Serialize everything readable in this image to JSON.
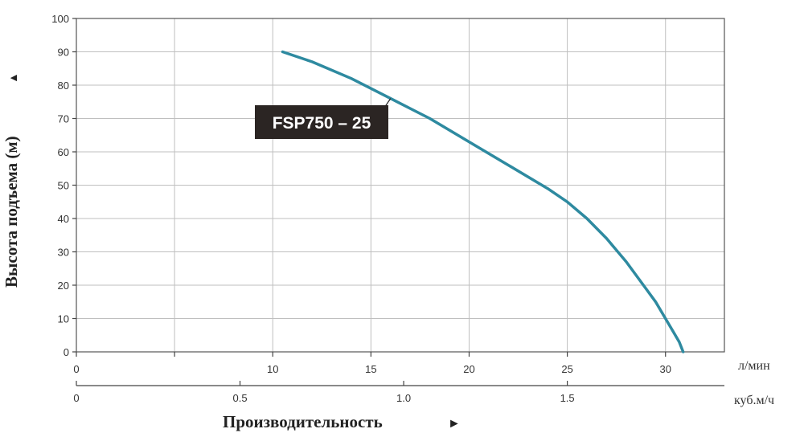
{
  "chart_data": {
    "type": "line",
    "ylabel": "Высота подъема (м)",
    "ylabel_arrow": "▲",
    "xlabel": "Производительность",
    "xlabel_arrow": "►",
    "ylim": [
      0,
      100
    ],
    "y_ticks": [
      "0",
      "10",
      "20",
      "30",
      "40",
      "50",
      "60",
      "70",
      "80",
      "90",
      "100"
    ],
    "x_axis_primary": {
      "unit": "л/мин",
      "ticks": [
        "0",
        "10",
        "15",
        "20",
        "25",
        "30"
      ],
      "range": [
        0,
        33
      ]
    },
    "x_axis_secondary": {
      "unit": "куб.м/ч",
      "ticks": [
        "0",
        "0.5",
        "1.0",
        "1.5"
      ]
    },
    "grid": true,
    "series": [
      {
        "name": "FSP750 – 25",
        "color": "#2e8aa0",
        "x": [
          10.5,
          12,
          14,
          16,
          18,
          20,
          22,
          24,
          25,
          26,
          27,
          28,
          29,
          29.5,
          30,
          30.4,
          30.7,
          30.9
        ],
        "y": [
          90,
          87,
          82,
          76,
          70,
          63,
          56,
          49,
          45,
          40,
          34,
          27,
          19,
          15,
          10,
          6,
          3,
          0
        ]
      }
    ]
  }
}
